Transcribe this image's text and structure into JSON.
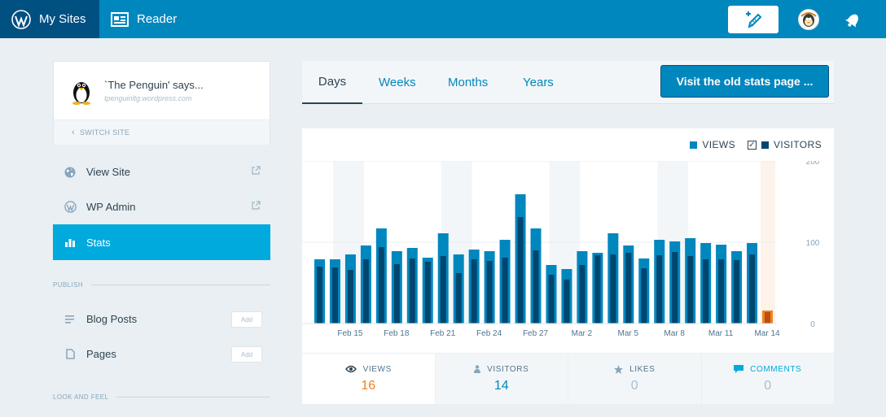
{
  "masterbar": {
    "my_sites_label": "My Sites",
    "reader_label": "Reader",
    "write_icon": "write-icon",
    "avatar_icon": "avatar",
    "notifications_icon": "bell-icon"
  },
  "sidebar": {
    "site_title": "`The Penguin' says...",
    "site_domain": "tpenguinltg.wordpress.com",
    "switch_site": "SWITCH SITE",
    "items": [
      {
        "label": "View Site",
        "icon": "globe-icon"
      },
      {
        "label": "WP Admin",
        "icon": "wordpress-icon"
      },
      {
        "label": "Stats",
        "icon": "stats-icon"
      }
    ],
    "publish_heading": "PUBLISH",
    "publish_items": [
      {
        "label": "Blog Posts",
        "add": "Add"
      },
      {
        "label": "Pages",
        "add": "Add"
      }
    ],
    "look_heading": "LOOK AND FEEL"
  },
  "period_nav": {
    "tabs": [
      "Days",
      "Weeks",
      "Months",
      "Years"
    ],
    "selected": "Days",
    "old_stats_button": "Visit the old stats page ..."
  },
  "legend": {
    "views": "VIEWS",
    "visitors": "VISITORS"
  },
  "colors": {
    "views": "#0087be",
    "visitors": "#00466e",
    "today": "#f0821e",
    "today_dark": "#b94d14",
    "weekend": "#f3f6f8",
    "today_bg": "#fdf3ea"
  },
  "stat_tabs": [
    {
      "label": "VIEWS",
      "value": "16",
      "icon": "eye-icon"
    },
    {
      "label": "VISITORS",
      "value": "14",
      "icon": "person-icon"
    },
    {
      "label": "LIKES",
      "value": "0",
      "icon": "star-icon"
    },
    {
      "label": "COMMENTS",
      "value": "0",
      "icon": "comment-icon"
    }
  ],
  "chart_data": {
    "type": "bar",
    "x": [
      "Feb 13",
      "Feb 14",
      "Feb 15",
      "Feb 16",
      "Feb 17",
      "Feb 18",
      "Feb 19",
      "Feb 20",
      "Feb 21",
      "Feb 22",
      "Feb 23",
      "Feb 24",
      "Feb 25",
      "Feb 26",
      "Feb 27",
      "Feb 28",
      "Mar 1",
      "Mar 2",
      "Mar 3",
      "Mar 4",
      "Mar 5",
      "Mar 6",
      "Mar 7",
      "Mar 8",
      "Mar 9",
      "Mar 10",
      "Mar 11",
      "Mar 12",
      "Mar 13",
      "Mar 14"
    ],
    "tick_labels": [
      "Feb 15",
      "Feb 18",
      "Feb 21",
      "Feb 24",
      "Feb 27",
      "Mar 2",
      "Mar 5",
      "Mar 8",
      "Mar 11",
      "Mar 14"
    ],
    "series": [
      {
        "name": "VIEWS",
        "values": [
          79,
          79,
          85,
          96,
          117,
          89,
          93,
          81,
          111,
          85,
          91,
          89,
          103,
          159,
          117,
          72,
          67,
          89,
          87,
          111,
          96,
          80,
          103,
          101,
          105,
          99,
          97,
          89,
          99,
          16
        ]
      },
      {
        "name": "VISITORS",
        "values": [
          70,
          69,
          66,
          79,
          94,
          73,
          80,
          76,
          83,
          62,
          79,
          77,
          81,
          131,
          90,
          60,
          54,
          72,
          84,
          85,
          87,
          68,
          84,
          88,
          83,
          79,
          79,
          78,
          85,
          14
        ]
      }
    ],
    "ylim": [
      0,
      200
    ],
    "yticks": [
      "0",
      "100",
      "200"
    ],
    "weekend_days": [
      "Feb 14",
      "Feb 21",
      "Feb 28",
      "Mar 7"
    ],
    "today": "Mar 14"
  }
}
